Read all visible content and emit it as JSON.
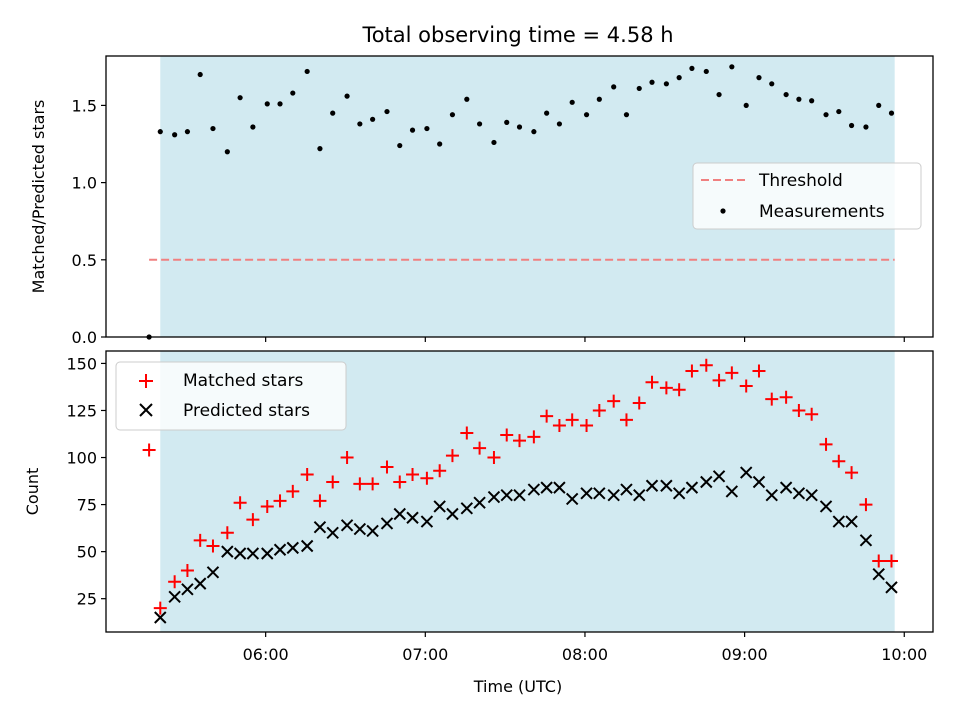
{
  "title": "Total observing time = 4.58 h",
  "colors": {
    "band": "#add8e6",
    "threshold": "#f08080",
    "matched": "#ff0000",
    "predicted": "#000000",
    "measure": "#000000"
  },
  "chart_data": [
    {
      "type": "scatter",
      "ylabel": "Matched/Predicted stars",
      "ylim": [
        0,
        1.82
      ],
      "yticks": [
        "0.0",
        "0.5",
        "1.0",
        "1.5"
      ],
      "xlim_hours": [
        5.0,
        10.18
      ],
      "observing_window_hours": [
        5.34,
        9.94
      ],
      "threshold": {
        "value": 0.5,
        "x_range_hours": [
          5.27,
          9.94
        ]
      },
      "legend": [
        "Threshold",
        "Measurements"
      ],
      "legend_position": "center-right",
      "series": [
        {
          "name": "Measurements",
          "x": [
            5.27,
            5.34,
            5.43,
            5.51,
            5.59,
            5.67,
            5.76,
            5.84,
            5.92,
            6.01,
            6.09,
            6.17,
            6.26,
            6.34,
            6.42,
            6.51,
            6.59,
            6.67,
            6.76,
            6.84,
            6.92,
            7.01,
            7.09,
            7.17,
            7.26,
            7.34,
            7.43,
            7.51,
            7.59,
            7.68,
            7.76,
            7.84,
            7.92,
            8.01,
            8.09,
            8.18,
            8.26,
            8.34,
            8.42,
            8.51,
            8.59,
            8.67,
            8.76,
            8.84,
            8.92,
            9.01,
            9.09,
            9.17,
            9.26,
            9.34,
            9.42,
            9.51,
            9.59,
            9.67,
            9.76,
            9.84,
            9.92
          ],
          "y": [
            0.0,
            1.33,
            1.31,
            1.33,
            1.7,
            1.35,
            1.2,
            1.55,
            1.36,
            1.51,
            1.51,
            1.58,
            1.72,
            1.22,
            1.45,
            1.56,
            1.38,
            1.41,
            1.46,
            1.24,
            1.34,
            1.35,
            1.25,
            1.44,
            1.54,
            1.38,
            1.26,
            1.39,
            1.36,
            1.33,
            1.45,
            1.38,
            1.52,
            1.44,
            1.54,
            1.62,
            1.44,
            1.61,
            1.65,
            1.64,
            1.68,
            1.74,
            1.72,
            1.57,
            1.75,
            1.5,
            1.68,
            1.64,
            1.57,
            1.54,
            1.53,
            1.44,
            1.46,
            1.37,
            1.36,
            1.5,
            1.45
          ]
        }
      ]
    },
    {
      "type": "scatter",
      "xlabel": "Time (UTC)",
      "ylabel": "Count",
      "ylim": [
        7.3,
        156.6
      ],
      "yticks": [
        "25",
        "50",
        "75",
        "100",
        "125",
        "150"
      ],
      "xticks": [
        "06:00",
        "07:00",
        "08:00",
        "09:00",
        "10:00"
      ],
      "xticks_hours": [
        6,
        7,
        8,
        9,
        10
      ],
      "xlim_hours": [
        5.0,
        10.18
      ],
      "observing_window_hours": [
        5.34,
        9.94
      ],
      "legend": [
        "Matched stars",
        "Predicted stars"
      ],
      "legend_position": "top-left",
      "series": [
        {
          "name": "Matched stars",
          "x": [
            5.27,
            5.34,
            5.43,
            5.51,
            5.59,
            5.67,
            5.76,
            5.84,
            5.92,
            6.01,
            6.09,
            6.17,
            6.26,
            6.34,
            6.42,
            6.51,
            6.59,
            6.67,
            6.76,
            6.84,
            6.92,
            7.01,
            7.09,
            7.17,
            7.26,
            7.34,
            7.43,
            7.51,
            7.59,
            7.68,
            7.76,
            7.84,
            7.92,
            8.01,
            8.09,
            8.18,
            8.26,
            8.34,
            8.42,
            8.51,
            8.59,
            8.67,
            8.76,
            8.84,
            8.92,
            9.01,
            9.09,
            9.17,
            9.26,
            9.34,
            9.42,
            9.51,
            9.59,
            9.67,
            9.76,
            9.84,
            9.92
          ],
          "y": [
            104,
            20,
            34,
            40,
            56,
            53,
            60,
            76,
            67,
            74,
            77,
            82,
            91,
            77,
            87,
            100,
            86,
            86,
            95,
            87,
            91,
            89,
            93,
            101,
            113,
            105,
            100,
            112,
            109,
            111,
            122,
            117,
            120,
            117,
            125,
            130,
            120,
            129,
            140,
            137,
            136,
            146,
            149,
            141,
            145,
            138,
            146,
            131,
            132,
            125,
            123,
            107,
            98,
            92,
            75,
            45,
            45
          ]
        },
        {
          "name": "Predicted stars",
          "x": [
            5.34,
            5.43,
            5.51,
            5.59,
            5.67,
            5.76,
            5.84,
            5.92,
            6.01,
            6.09,
            6.17,
            6.26,
            6.34,
            6.42,
            6.51,
            6.59,
            6.67,
            6.76,
            6.84,
            6.92,
            7.01,
            7.09,
            7.17,
            7.26,
            7.34,
            7.43,
            7.51,
            7.59,
            7.68,
            7.76,
            7.84,
            7.92,
            8.01,
            8.09,
            8.18,
            8.26,
            8.34,
            8.42,
            8.51,
            8.59,
            8.67,
            8.76,
            8.84,
            8.92,
            9.01,
            9.09,
            9.17,
            9.26,
            9.34,
            9.42,
            9.51,
            9.59,
            9.67,
            9.76,
            9.84,
            9.92
          ],
          "y": [
            15,
            26,
            30,
            33,
            39,
            50,
            49,
            49,
            49,
            51,
            52,
            53,
            63,
            60,
            64,
            62,
            61,
            65,
            70,
            68,
            66,
            74,
            70,
            73,
            76,
            79,
            80,
            80,
            83,
            84,
            84,
            78,
            81,
            81,
            80,
            83,
            80,
            85,
            85,
            81,
            84,
            87,
            90,
            82,
            92,
            87,
            80,
            84,
            81,
            80,
            74,
            66,
            66,
            56,
            38,
            31
          ]
        }
      ]
    }
  ]
}
